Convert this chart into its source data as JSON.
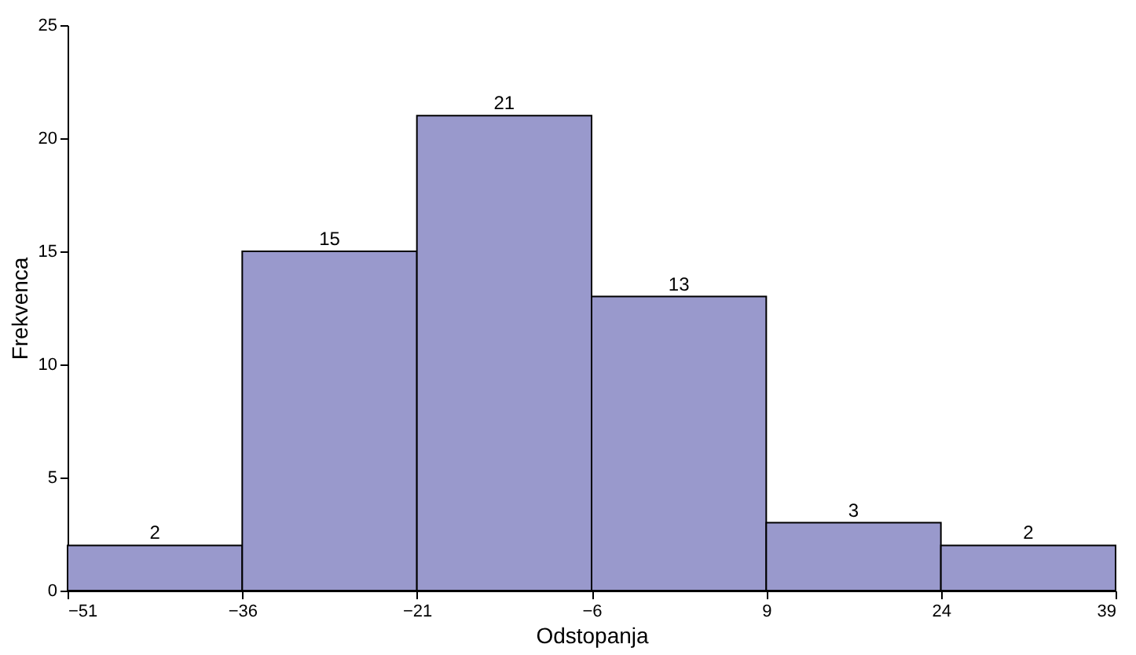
{
  "chart_data": {
    "type": "histogram",
    "xlabel": "Odstopanja",
    "ylabel": "Frekvenca",
    "bins": [
      -51,
      -36,
      -21,
      -6,
      9,
      24,
      39
    ],
    "values": [
      2,
      15,
      21,
      13,
      3,
      2
    ],
    "color": "#9999cc",
    "xlim": [
      -51,
      39
    ],
    "xticks": [
      -51,
      -36,
      -21,
      -6,
      9,
      24,
      39
    ],
    "ylim": [
      0,
      25
    ],
    "yticks": [
      0,
      5,
      10,
      15,
      20,
      25
    ],
    "data_labels": true
  }
}
